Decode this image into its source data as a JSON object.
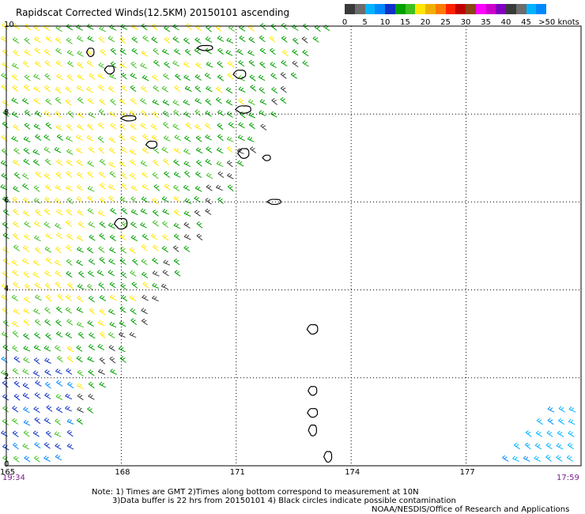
{
  "title": "Rapidscat Corrected Winds(12.5KM) 20150101 ascending",
  "colors": {
    "wind": [
      "#3a3a3a",
      "#6c6c6c",
      "#00b4ff",
      "#0088ff",
      "#1030c8",
      "#00a000",
      "#40c020",
      "#ffe600",
      "#f0b000",
      "#ff7a00",
      "#ff2000",
      "#c00000",
      "#8b4513",
      "#ff00ff",
      "#cc00cc",
      "#8000c0"
    ],
    "axis_text": "#000000",
    "time_text": "#7a1f8c",
    "grid": "#000000"
  },
  "legend": {
    "labels": [
      "0",
      "5",
      "10",
      "15",
      "20",
      "25",
      "30",
      "35",
      "40",
      "45",
      ">50 knots"
    ]
  },
  "chart_data": {
    "type": "wind-barb map",
    "title": "Rapidscat Corrected Winds(12.5KM) 20150101 ascending",
    "x_ticks": [
      "165",
      "168",
      "171",
      "174",
      "177"
    ],
    "x_values": [
      165,
      168,
      171,
      174,
      177
    ],
    "y_ticks": [
      "0",
      "2",
      "4",
      "6",
      "8",
      "10"
    ],
    "y_values": [
      0,
      2,
      4,
      6,
      8,
      10
    ],
    "xlim": [
      165,
      180
    ],
    "ylim": [
      0,
      10
    ],
    "grid": true,
    "legend_placement": "top-right",
    "speed_bins_knots": [
      0,
      5,
      10,
      15,
      20,
      25,
      30,
      35,
      40,
      45,
      50
    ],
    "swath_left": {
      "yellow_core": [
        [
          165.2,
          9.5
        ],
        [
          167.0,
          8.5
        ],
        [
          168.5,
          7.2
        ],
        [
          166.5,
          6.0
        ],
        [
          165.6,
          4.0
        ]
      ],
      "blue_region_max_lat": 2.5,
      "edge_lon_at_lat0": 166.5,
      "edge_lon_at_lat10": 173.6
    },
    "swath_right_corner": {
      "lon_min": 178.0,
      "lat_max": 1.5
    },
    "islands_lonlat": [
      [
        167.2,
        9.4
      ],
      [
        167.7,
        9.0
      ],
      [
        170.2,
        9.5
      ],
      [
        171.1,
        8.9
      ],
      [
        171.2,
        8.1
      ],
      [
        168.2,
        7.9
      ],
      [
        168.8,
        7.3
      ],
      [
        171.2,
        7.1
      ],
      [
        171.8,
        7.0
      ],
      [
        172.0,
        6.0
      ],
      [
        168.0,
        5.5
      ],
      [
        173.0,
        3.1
      ],
      [
        173.0,
        1.7
      ],
      [
        173.0,
        1.2
      ],
      [
        173.0,
        0.8
      ],
      [
        173.4,
        0.2
      ]
    ],
    "times": {
      "left": "19:34",
      "right": "17:59"
    }
  },
  "notes": {
    "line1": "Note: 1) Times are GMT 2)Times along bottom correspond to measurement at 10N",
    "line2": "3)Data buffer is 22 hrs from 20150101 4) Black circles indicate possible contamination",
    "line3": "NOAA/NESDIS/Office of Research and Applications"
  }
}
